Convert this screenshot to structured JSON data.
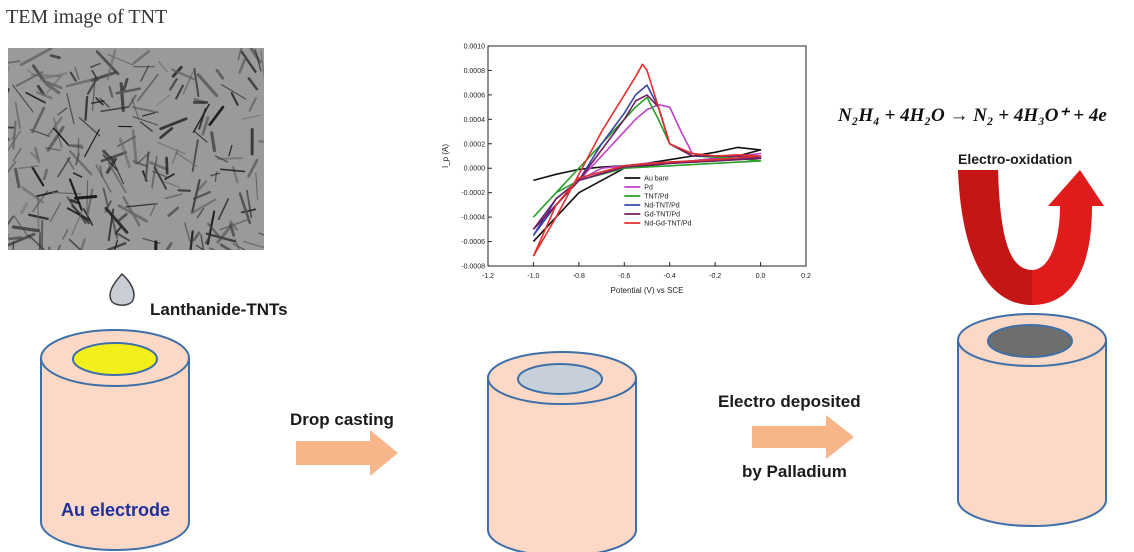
{
  "tem": {
    "title": "TEM image of TNT"
  },
  "labels": {
    "lanthanide": "Lanthanide-TNTs",
    "drop_casting": "Drop casting",
    "electro_deposited": "Electro deposited",
    "by_palladium": "by Palladium",
    "electro_oxidation": "Electro-oxidation",
    "au_electrode": "Au electrode"
  },
  "equation": "N₂H₄ + 4H₂O → N₂ + 4H₃O⁺ + 4e",
  "colors": {
    "cylinder_fill": "#fbd9c6",
    "cylinder_stroke": "#3f6fa8",
    "yellow_disk": "#f2ef1b",
    "grey_disk": "#c7cfd9",
    "dark_disk": "#6e6e6e",
    "arrow_orange": "#f8b589",
    "curve_arrow_red": "#e01b1b"
  },
  "chart_data": {
    "type": "line",
    "xlabel": "Potential (V) vs SCE",
    "ylabel": "I_p (A)",
    "xlim": [
      -1.2,
      0.2
    ],
    "ylim": [
      -0.0008,
      0.001
    ],
    "xticks": [
      "-1.2",
      "-1.0",
      "-0.8",
      "-0.6",
      "-0.4",
      "-0.2",
      "0.0",
      "0.2"
    ],
    "yticks": [
      "-0.0008",
      "-0.0006",
      "-0.0004",
      "-0.0002",
      "0.0000",
      "0.0002",
      "0.0004",
      "0.0006",
      "0.0008",
      "0.0010"
    ],
    "legend_position": "lower-right",
    "series": [
      {
        "name": "Au bare",
        "color": "#111111",
        "x": [
          -1.0,
          -0.9,
          -0.8,
          -0.7,
          -0.6,
          -0.5,
          -0.4,
          -0.3,
          -0.2,
          -0.1,
          0.0,
          -0.1,
          -0.2,
          -0.3,
          -0.4,
          -0.5,
          -0.6,
          -0.7,
          -0.8,
          -0.9,
          -1.0
        ],
        "y": [
          -0.0001,
          -5e-05,
          -1e-05,
          1e-05,
          2e-05,
          4e-05,
          7e-05,
          0.0001,
          0.00013,
          0.00017,
          0.00015,
          0.0001,
          8e-05,
          6e-05,
          4e-05,
          2e-05,
          0.0,
          -0.0001,
          -0.0002,
          -0.0004,
          -0.0006
        ]
      },
      {
        "name": "Pd",
        "color": "#c040c8",
        "x": [
          -1.0,
          -0.9,
          -0.8,
          -0.7,
          -0.6,
          -0.55,
          -0.5,
          -0.45,
          -0.4,
          -0.35,
          -0.3,
          -0.2,
          -0.1,
          0.0,
          -0.1,
          -0.2,
          -0.3,
          -0.4,
          -0.5,
          -0.6,
          -0.7,
          -0.8,
          -0.9,
          -1.0
        ],
        "y": [
          -0.0005,
          -0.0003,
          -0.0001,
          0.0001,
          0.0003,
          0.0004,
          0.00048,
          0.00052,
          0.0005,
          0.0003,
          0.00012,
          0.0001,
          0.0001,
          0.00012,
          0.0001,
          8e-05,
          6e-05,
          5e-05,
          4e-05,
          2e-05,
          0.0,
          -0.0001,
          -0.0003,
          -0.0005
        ]
      },
      {
        "name": "TNT/Pd",
        "color": "#2aa02a",
        "x": [
          -1.0,
          -0.9,
          -0.8,
          -0.7,
          -0.6,
          -0.55,
          -0.5,
          -0.45,
          -0.4,
          -0.3,
          -0.2,
          -0.1,
          0.0,
          -0.2,
          -0.4,
          -0.6,
          -0.8,
          -0.9,
          -1.0
        ],
        "y": [
          -0.0004,
          -0.0002,
          0.0,
          0.0002,
          0.0004,
          0.0005,
          0.00058,
          0.0004,
          0.0002,
          0.0001,
          9e-05,
          8e-05,
          6e-05,
          4e-05,
          2e-05,
          0.0,
          -0.0001,
          -0.0002,
          -0.0004
        ]
      },
      {
        "name": "Nd-TNT/Pd",
        "color": "#3a45a8",
        "x": [
          -1.0,
          -0.9,
          -0.8,
          -0.7,
          -0.6,
          -0.55,
          -0.5,
          -0.45,
          -0.4,
          -0.3,
          -0.2,
          -0.1,
          0.0,
          -0.2,
          -0.4,
          -0.6,
          -0.8,
          -0.9,
          -1.0
        ],
        "y": [
          -0.00055,
          -0.0003,
          -0.0001,
          0.0002,
          0.00045,
          0.0006,
          0.00068,
          0.0005,
          0.0002,
          0.0001,
          0.0001,
          0.0001,
          9e-05,
          6e-05,
          4e-05,
          1e-05,
          -0.0001,
          -0.00025,
          -0.00055
        ]
      },
      {
        "name": "Gd-TNT/Pd",
        "color": "#702060",
        "x": [
          -1.0,
          -0.9,
          -0.8,
          -0.7,
          -0.6,
          -0.55,
          -0.5,
          -0.45,
          -0.4,
          -0.3,
          -0.2,
          -0.1,
          0.0,
          -0.2,
          -0.4,
          -0.6,
          -0.8,
          -0.9,
          -1.0
        ],
        "y": [
          -0.0005,
          -0.0003,
          -0.0001,
          0.00015,
          0.0004,
          0.00055,
          0.0006,
          0.0005,
          0.0002,
          0.0001,
          0.0001,
          0.0001,
          8e-05,
          6e-05,
          4e-05,
          1e-05,
          -0.0001,
          -0.00025,
          -0.0005
        ]
      },
      {
        "name": "Nd-Gd-TNT/Pd",
        "color": "#e03030",
        "x": [
          -1.0,
          -0.9,
          -0.8,
          -0.7,
          -0.6,
          -0.55,
          -0.52,
          -0.5,
          -0.45,
          -0.4,
          -0.3,
          -0.2,
          -0.1,
          0.0,
          -0.2,
          -0.4,
          -0.6,
          -0.8,
          -0.9,
          -1.0
        ],
        "y": [
          -0.00072,
          -0.0004,
          -5e-05,
          0.0003,
          0.0006,
          0.00075,
          0.00085,
          0.0008,
          0.0005,
          0.0002,
          0.00012,
          0.0001,
          0.00011,
          0.0001,
          7e-05,
          5e-05,
          2e-05,
          -8e-05,
          -0.0003,
          -0.00072
        ]
      }
    ]
  }
}
